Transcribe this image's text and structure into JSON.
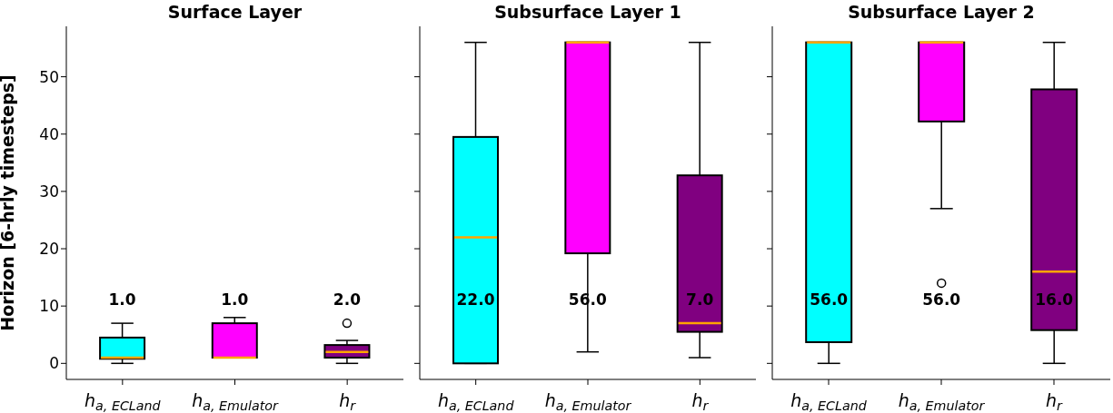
{
  "chart_data": [
    {
      "type": "box",
      "title": "Surface Layer",
      "ylabel": "Horizon [6-hrly timesteps]",
      "categories": [
        "h$_{a, ECLand}$",
        "h$_{a, Emulator}$",
        "h$_{r}$"
      ],
      "colors": [
        "#00ffff",
        "#ff00ff",
        "#800080"
      ],
      "boxes": [
        {
          "low": 0,
          "q1": 0.8,
          "median": 1,
          "q3": 4.5,
          "high": 7
        },
        {
          "low": 1,
          "q1": 1,
          "median": 1,
          "q3": 7,
          "high": 8
        },
        {
          "low": 0,
          "q1": 1,
          "median": 2,
          "q3": 3.2,
          "high": 4,
          "outliers": [
            7
          ]
        }
      ],
      "annotations": [
        "1.0",
        "1.0",
        "2.0"
      ],
      "ylim": [
        -2.8,
        58.8
      ],
      "yticks": [
        0,
        10,
        20,
        30,
        40,
        50
      ],
      "grid": false
    },
    {
      "type": "box",
      "title": "Subsurface Layer 1",
      "categories": [
        "h$_{a, ECLand}$",
        "h$_{a, Emulator}$",
        "h$_{r}$"
      ],
      "colors": [
        "#00ffff",
        "#ff00ff",
        "#800080"
      ],
      "boxes": [
        {
          "low": 0,
          "q1": 0,
          "median": 22,
          "q3": 39.5,
          "high": 56
        },
        {
          "low": 2,
          "q1": 19.2,
          "median": 56,
          "q3": 56,
          "high": 56
        },
        {
          "low": 1,
          "q1": 5.5,
          "median": 7,
          "q3": 32.8,
          "high": 56
        }
      ],
      "annotations": [
        "22.0",
        "56.0",
        "7.0"
      ],
      "ylim": [
        -2.8,
        58.8
      ],
      "yticks": [
        0,
        10,
        20,
        30,
        40,
        50
      ],
      "tick_labels": "x",
      "grid": false
    },
    {
      "type": "box",
      "title": "Subsurface Layer 2",
      "categories": [
        "h$_{a, ECLand}$",
        "h$_{a, Emulator}$",
        "h$_{r}$"
      ],
      "colors": [
        "#00ffff",
        "#ff00ff",
        "#800080"
      ],
      "boxes": [
        {
          "low": 0,
          "q1": 3.7,
          "median": 56,
          "q3": 56,
          "high": 56
        },
        {
          "low": 27,
          "q1": 42.2,
          "median": 56,
          "q3": 56,
          "high": 56,
          "outliers": [
            14
          ]
        },
        {
          "low": 0,
          "q1": 5.8,
          "median": 16,
          "q3": 47.8,
          "high": 56
        }
      ],
      "annotations": [
        "56.0",
        "56.0",
        "16.0"
      ],
      "ylim": [
        -2.8,
        58.8
      ],
      "yticks": [
        0,
        10,
        20,
        30,
        40,
        50
      ],
      "tick_labels": "x",
      "grid": false
    }
  ]
}
